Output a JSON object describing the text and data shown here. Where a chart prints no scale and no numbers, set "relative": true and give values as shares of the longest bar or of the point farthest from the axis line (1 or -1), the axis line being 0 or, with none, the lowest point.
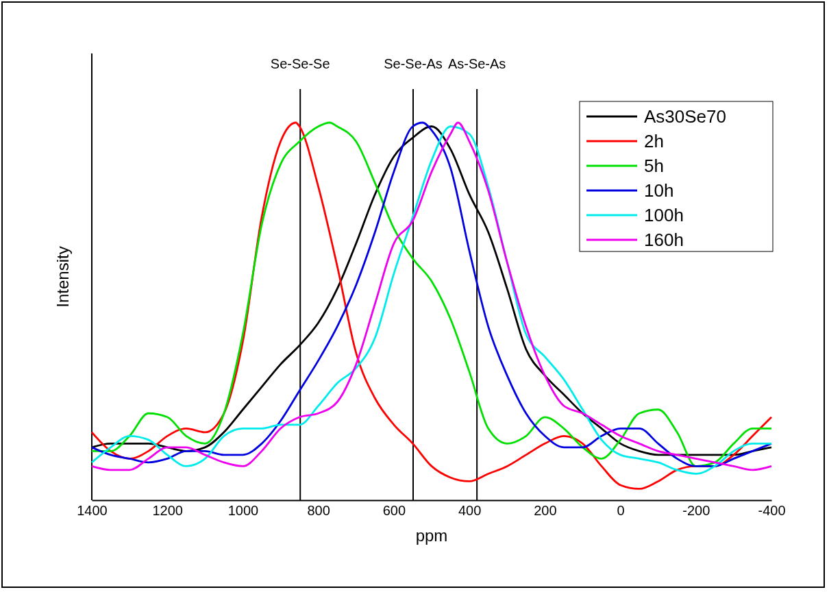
{
  "chart_data": {
    "type": "line",
    "relative": true,
    "xlabel": "ppm",
    "ylabel": "Intensity",
    "xlim": [
      1400,
      -400
    ],
    "xticks": [
      1400,
      1200,
      1000,
      800,
      600,
      400,
      200,
      0,
      -200,
      -400
    ],
    "legend": "top right",
    "line_style": "solid",
    "marker": "none",
    "grid": false,
    "x": [
      1400,
      1350,
      1300,
      1250,
      1200,
      1150,
      1100,
      1050,
      1000,
      950,
      900,
      850,
      800,
      750,
      700,
      650,
      600,
      550,
      500,
      450,
      400,
      350,
      300,
      250,
      200,
      150,
      100,
      50,
      0,
      -50,
      -100,
      -150,
      -200,
      -250,
      -300,
      -350,
      -400
    ],
    "ref_lines": [
      {
        "axis": "x",
        "value": 848,
        "label": "Se-Se-Se"
      },
      {
        "axis": "x",
        "value": 549,
        "label": "Se-Se-As"
      },
      {
        "axis": "x",
        "value": 380,
        "label": "As-Se-As"
      }
    ],
    "series": [
      {
        "name": "As30Se70",
        "color": "#000000",
        "values": [
          0.14,
          0.15,
          0.15,
          0.15,
          0.14,
          0.13,
          0.14,
          0.18,
          0.24,
          0.3,
          0.36,
          0.41,
          0.47,
          0.56,
          0.68,
          0.81,
          0.91,
          0.96,
          0.99,
          0.93,
          0.81,
          0.71,
          0.56,
          0.4,
          0.33,
          0.28,
          0.23,
          0.19,
          0.15,
          0.13,
          0.12,
          0.12,
          0.12,
          0.12,
          0.12,
          0.13,
          0.14
        ]
      },
      {
        "name": "2h",
        "color": "#ff0000",
        "x": [
          1400,
          1350,
          1300,
          1250,
          1200,
          1150,
          1100,
          1050,
          1000,
          950,
          900,
          860,
          850,
          800,
          750,
          700,
          650,
          600,
          550,
          500,
          450,
          400,
          350,
          300,
          250,
          200,
          150,
          100,
          50,
          0,
          -50,
          -100,
          -150,
          -200,
          -250,
          -300,
          -350,
          -400
        ],
        "values": [
          0.18,
          0.13,
          0.11,
          0.13,
          0.17,
          0.19,
          0.18,
          0.23,
          0.42,
          0.75,
          0.95,
          1,
          0.99,
          0.83,
          0.62,
          0.39,
          0.27,
          0.2,
          0.15,
          0.09,
          0.06,
          0.05,
          0.07,
          0.09,
          0.12,
          0.15,
          0.17,
          0.15,
          0.09,
          0.04,
          0.03,
          0.05,
          0.08,
          0.09,
          0.09,
          0.12,
          0.17,
          0.22
        ]
      },
      {
        "name": "5h",
        "color": "#00e000",
        "x": [
          1400,
          1350,
          1300,
          1250,
          1200,
          1150,
          1100,
          1050,
          1000,
          950,
          900,
          850,
          800,
          770,
          750,
          700,
          650,
          600,
          550,
          500,
          450,
          400,
          350,
          300,
          250,
          200,
          150,
          100,
          50,
          0,
          -50,
          -100,
          -150,
          -200,
          -250,
          -300,
          -350,
          -400
        ],
        "values": [
          0.13,
          0.13,
          0.17,
          0.23,
          0.22,
          0.17,
          0.15,
          0.23,
          0.44,
          0.73,
          0.89,
          0.95,
          0.99,
          1,
          0.99,
          0.95,
          0.84,
          0.72,
          0.64,
          0.58,
          0.48,
          0.34,
          0.19,
          0.15,
          0.17,
          0.22,
          0.19,
          0.14,
          0.11,
          0.16,
          0.23,
          0.24,
          0.18,
          0.09,
          0.1,
          0.15,
          0.19,
          0.19
        ]
      },
      {
        "name": "10h",
        "color": "#0000e0",
        "x": [
          1400,
          1350,
          1300,
          1250,
          1200,
          1150,
          1100,
          1050,
          1000,
          950,
          900,
          850,
          800,
          750,
          700,
          650,
          600,
          550,
          524,
          500,
          450,
          400,
          350,
          300,
          250,
          200,
          150,
          100,
          50,
          0,
          -50,
          -100,
          -150,
          -200,
          -250,
          -300,
          -350,
          -400
        ],
        "values": [
          0.14,
          0.12,
          0.11,
          0.1,
          0.11,
          0.13,
          0.13,
          0.12,
          0.12,
          0.15,
          0.21,
          0.29,
          0.37,
          0.46,
          0.57,
          0.71,
          0.87,
          0.99,
          1,
          0.98,
          0.88,
          0.66,
          0.46,
          0.33,
          0.23,
          0.17,
          0.14,
          0.14,
          0.17,
          0.19,
          0.19,
          0.15,
          0.11,
          0.09,
          0.09,
          0.11,
          0.13,
          0.15
        ]
      },
      {
        "name": "100h",
        "color": "#00ecec",
        "values": [
          0.1,
          0.14,
          0.17,
          0.16,
          0.12,
          0.09,
          0.11,
          0.17,
          0.19,
          0.19,
          0.2,
          0.2,
          0.25,
          0.31,
          0.35,
          0.43,
          0.6,
          0.75,
          0.9,
          0.99,
          0.97,
          0.83,
          0.63,
          0.44,
          0.38,
          0.32,
          0.24,
          0.16,
          0.12,
          0.11,
          0.1,
          0.08,
          0.07,
          0.09,
          0.13,
          0.15,
          0.15
        ]
      },
      {
        "name": "160h",
        "color": "#ee00ee",
        "x": [
          1400,
          1350,
          1300,
          1250,
          1200,
          1150,
          1100,
          1050,
          1000,
          950,
          900,
          850,
          800,
          750,
          700,
          650,
          600,
          550,
          500,
          450,
          430,
          400,
          350,
          300,
          250,
          200,
          150,
          100,
          50,
          0,
          -50,
          -100,
          -150,
          -200,
          -250,
          -300,
          -350,
          -400
        ],
        "values": [
          0.09,
          0.08,
          0.08,
          0.11,
          0.14,
          0.14,
          0.12,
          0.1,
          0.09,
          0.13,
          0.19,
          0.22,
          0.23,
          0.26,
          0.36,
          0.52,
          0.68,
          0.74,
          0.87,
          0.97,
          1,
          0.95,
          0.82,
          0.63,
          0.46,
          0.33,
          0.25,
          0.23,
          0.2,
          0.17,
          0.15,
          0.13,
          0.12,
          0.11,
          0.1,
          0.09,
          0.08,
          0.09
        ]
      }
    ]
  }
}
